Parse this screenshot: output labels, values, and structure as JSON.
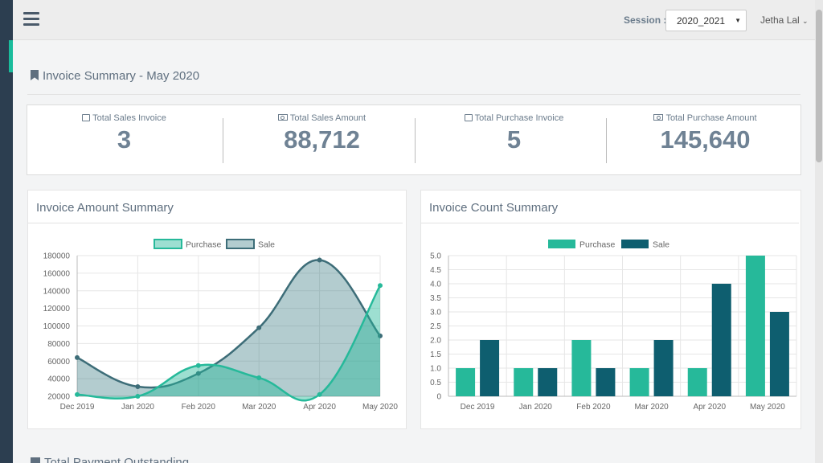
{
  "topbar": {
    "session_label": "Session :",
    "session_value": "2020_2021",
    "user_name": "Jetha Lal"
  },
  "page": {
    "title": "Invoice Summary - May 2020",
    "next_section_title": "Total Payment Outstanding"
  },
  "stats": [
    {
      "label": "Total Sales Invoice",
      "value": "3",
      "icon": "print-icon"
    },
    {
      "label": "Total Sales Amount",
      "value": "88,712",
      "icon": "money-icon"
    },
    {
      "label": "Total Purchase Invoice",
      "value": "5",
      "icon": "print-icon"
    },
    {
      "label": "Total Purchase Amount",
      "value": "145,640",
      "icon": "money-icon"
    }
  ],
  "colors": {
    "purchase": "#26b99a",
    "sale": "#0e5e6f",
    "purchase_fill": "rgba(38,185,154,0.45)",
    "sale_fill": "rgba(56,120,130,0.38)",
    "sale_line": "#3d6d78"
  },
  "chart_data": [
    {
      "type": "area",
      "title": "Invoice Amount Summary",
      "categories": [
        "Dec 2019",
        "Jan 2020",
        "Feb 2020",
        "Mar 2020",
        "Apr 2020",
        "May 2020"
      ],
      "series": [
        {
          "name": "Purchase",
          "values": [
            22000,
            20000,
            55000,
            41000,
            22000,
            146000
          ]
        },
        {
          "name": "Sale",
          "values": [
            64000,
            31000,
            46000,
            98000,
            175000,
            88712
          ]
        }
      ],
      "yticks": [
        "180000",
        "160000",
        "140000",
        "120000",
        "100000",
        "80000",
        "60000",
        "40000",
        "20000"
      ],
      "ylim": [
        20000,
        180000
      ],
      "legend": "top"
    },
    {
      "type": "bar",
      "title": "Invoice Count Summary",
      "categories": [
        "Dec 2019",
        "Jan 2020",
        "Feb 2020",
        "Mar 2020",
        "Apr 2020",
        "May 2020"
      ],
      "series": [
        {
          "name": "Purchase",
          "values": [
            1,
            1,
            2,
            1,
            1,
            5
          ]
        },
        {
          "name": "Sale",
          "values": [
            2,
            1,
            1,
            2,
            4,
            3
          ]
        }
      ],
      "yticks": [
        "5.0",
        "4.5",
        "4.0",
        "3.5",
        "3.0",
        "2.5",
        "2.0",
        "1.5",
        "1.0",
        "0.5",
        "0"
      ],
      "ylim": [
        0,
        5
      ],
      "legend": "top"
    }
  ]
}
